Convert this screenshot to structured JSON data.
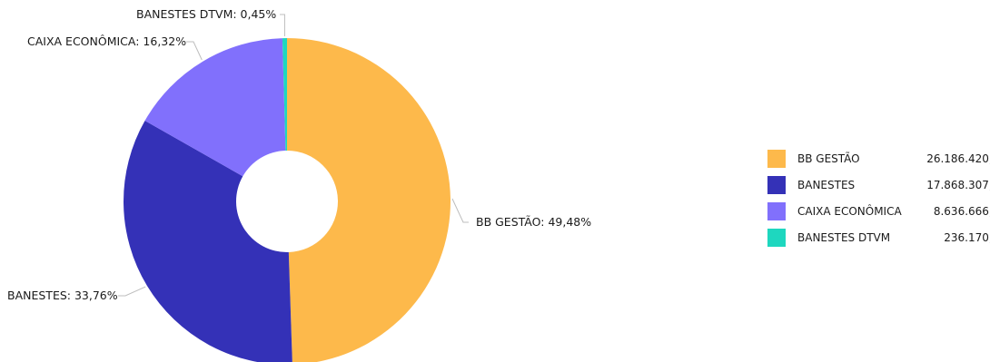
{
  "chart_data": {
    "type": "pie",
    "donut": true,
    "slices": [
      {
        "label": "BB GESTÃO",
        "percent": 49.48,
        "value": 26186420.56,
        "percent_label": "BB GESTÃO: 49,48%",
        "value_label": "26.186.420,56",
        "color": "#FDB94B"
      },
      {
        "label": "BANESTES",
        "percent": 33.76,
        "value": 17868307.7,
        "percent_label": "BANESTES: 33,76%",
        "value_label": "17.868.307,70",
        "color": "#3431B7"
      },
      {
        "label": "CAIXA ECONÔMICA",
        "percent": 16.32,
        "value": 8636666.47,
        "percent_label": "CAIXA ECONÔMICA: 16,32%",
        "value_label": "8.636.666,47",
        "color": "#8170FC"
      },
      {
        "label": "BANESTES DTVM",
        "percent": 0.45,
        "value": 236170.88,
        "percent_label": "BANESTES DTVM: 0,45%",
        "value_label": "236.170,88",
        "color": "#1ED7BF"
      }
    ],
    "legend_position": "right"
  }
}
